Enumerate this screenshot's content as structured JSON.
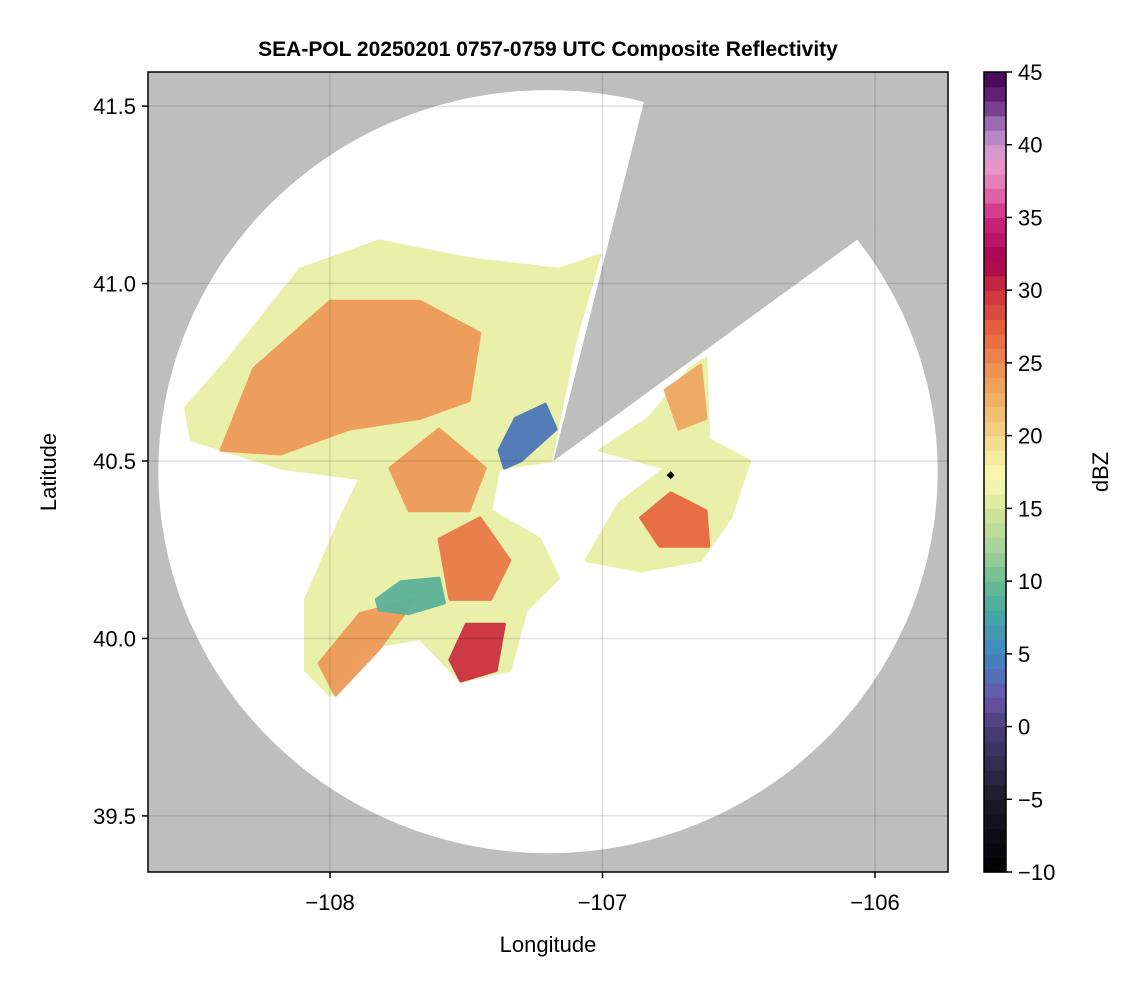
{
  "chart_data": {
    "type": "heatmap",
    "title": "SEA-POL 20250201 0757-0759 UTC Composite Reflectivity",
    "xlabel": "Longitude",
    "ylabel": "Latitude",
    "xlim": [
      -108.668,
      -105.732
    ],
    "ylim": [
      39.342,
      41.596
    ],
    "grid": true,
    "x_ticks": [
      {
        "value": -108,
        "label": "−108"
      },
      {
        "value": -107,
        "label": "−107"
      },
      {
        "value": -106,
        "label": "−106"
      }
    ],
    "y_ticks": [
      {
        "value": 39.5,
        "label": "39.5"
      },
      {
        "value": 40.0,
        "label": "40.0"
      },
      {
        "value": 40.5,
        "label": "40.5"
      },
      {
        "value": 41.0,
        "label": "41.0"
      },
      {
        "value": 41.5,
        "label": "41.5"
      }
    ],
    "colorbar": {
      "label": "dBZ",
      "range": [
        -10,
        45
      ],
      "bin": 1,
      "ticks": [
        {
          "value": -10,
          "label": "−10"
        },
        {
          "value": -5,
          "label": "−5"
        },
        {
          "value": 0,
          "label": "0"
        },
        {
          "value": 5,
          "label": "5"
        },
        {
          "value": 10,
          "label": "10"
        },
        {
          "value": 15,
          "label": "15"
        },
        {
          "value": 20,
          "label": "20"
        },
        {
          "value": 25,
          "label": "25"
        },
        {
          "value": 30,
          "label": "30"
        },
        {
          "value": 35,
          "label": "35"
        },
        {
          "value": 40,
          "label": "40"
        },
        {
          "value": 45,
          "label": "45"
        }
      ],
      "anchors": [
        [
          -10,
          "#000000"
        ],
        [
          -5,
          "#1c1a28"
        ],
        [
          0,
          "#4a3f7a"
        ],
        [
          2,
          "#6a56a8"
        ],
        [
          5,
          "#3f87c0"
        ],
        [
          8,
          "#4aa8a0"
        ],
        [
          10,
          "#6bbb92"
        ],
        [
          12,
          "#a2d09a"
        ],
        [
          15,
          "#d6e698"
        ],
        [
          17,
          "#fafab4"
        ],
        [
          19,
          "#f5e49a"
        ],
        [
          21,
          "#f0c57a"
        ],
        [
          24,
          "#ee9a58"
        ],
        [
          27,
          "#e86840"
        ],
        [
          30,
          "#cc3040"
        ],
        [
          32,
          "#a8004c"
        ],
        [
          35,
          "#cc2a80"
        ],
        [
          37,
          "#e474b0"
        ],
        [
          39,
          "#e8a0d0"
        ],
        [
          41,
          "#a880c0"
        ],
        [
          43,
          "#6a2a80"
        ],
        [
          45,
          "#400050"
        ]
      ]
    },
    "no_data_color": "#bebebe",
    "radar": {
      "lon": -107.2,
      "lat": 40.47,
      "range_lon_deg": 1.43,
      "range_lat_deg": 1.075
    },
    "blocked_sector": [
      [
        -107.18,
        40.5
      ],
      [
        -106.82,
        41.596
      ],
      [
        -105.732,
        41.596
      ],
      [
        -105.732,
        41.31
      ]
    ],
    "marker": {
      "lon": -106.75,
      "lat": 40.46
    },
    "echo_regions": [
      {
        "name": "west-stratiform",
        "dbz": 16,
        "points": [
          [
            -108.53,
            40.65
          ],
          [
            -108.37,
            40.79
          ],
          [
            -108.11,
            41.04
          ],
          [
            -107.82,
            41.12
          ],
          [
            -107.49,
            41.07
          ],
          [
            -107.16,
            41.04
          ],
          [
            -107.01,
            41.08
          ],
          [
            -107.1,
            40.84
          ],
          [
            -107.19,
            40.5
          ],
          [
            -107.38,
            40.48
          ],
          [
            -107.41,
            40.36
          ],
          [
            -107.23,
            40.28
          ],
          [
            -107.16,
            40.17
          ],
          [
            -107.28,
            40.08
          ],
          [
            -107.34,
            39.91
          ],
          [
            -107.52,
            39.88
          ],
          [
            -107.67,
            40.0
          ],
          [
            -107.89,
            39.97
          ],
          [
            -108.0,
            39.84
          ],
          [
            -108.09,
            39.91
          ],
          [
            -108.09,
            40.11
          ],
          [
            -107.96,
            40.34
          ],
          [
            -107.89,
            40.45
          ],
          [
            -108.18,
            40.48
          ],
          [
            -108.51,
            40.56
          ]
        ]
      },
      {
        "name": "east-stratiform",
        "dbz": 16,
        "points": [
          [
            -107.01,
            40.53
          ],
          [
            -106.83,
            40.62
          ],
          [
            -106.68,
            40.76
          ],
          [
            -106.62,
            40.79
          ],
          [
            -106.61,
            40.56
          ],
          [
            -106.46,
            40.5
          ],
          [
            -106.53,
            40.34
          ],
          [
            -106.64,
            40.22
          ],
          [
            -106.86,
            40.19
          ],
          [
            -107.06,
            40.22
          ],
          [
            -106.94,
            40.38
          ],
          [
            -106.77,
            40.48
          ]
        ]
      },
      {
        "name": "northwest-core",
        "dbz": 24,
        "points": [
          [
            -108.4,
            40.53
          ],
          [
            -108.28,
            40.76
          ],
          [
            -108.0,
            40.95
          ],
          [
            -107.67,
            40.95
          ],
          [
            -107.45,
            40.86
          ],
          [
            -107.49,
            40.67
          ],
          [
            -107.67,
            40.62
          ],
          [
            -107.93,
            40.59
          ],
          [
            -108.18,
            40.52
          ]
        ]
      },
      {
        "name": "central-core",
        "dbz": 24,
        "points": [
          [
            -107.78,
            40.48
          ],
          [
            -107.6,
            40.59
          ],
          [
            -107.43,
            40.48
          ],
          [
            -107.49,
            40.36
          ],
          [
            -107.71,
            40.36
          ]
        ]
      },
      {
        "name": "south-core",
        "dbz": 26,
        "points": [
          [
            -107.6,
            40.28
          ],
          [
            -107.45,
            40.34
          ],
          [
            -107.34,
            40.22
          ],
          [
            -107.41,
            40.11
          ],
          [
            -107.56,
            40.11
          ]
        ]
      },
      {
        "name": "southwest-band",
        "dbz": 24,
        "points": [
          [
            -108.04,
            39.93
          ],
          [
            -107.89,
            40.07
          ],
          [
            -107.69,
            40.11
          ],
          [
            -107.82,
            39.97
          ],
          [
            -107.98,
            39.84
          ]
        ]
      },
      {
        "name": "south-intense-core",
        "dbz": 30,
        "points": [
          [
            -107.56,
            39.94
          ],
          [
            -107.5,
            40.04
          ],
          [
            -107.36,
            40.04
          ],
          [
            -107.39,
            39.91
          ],
          [
            -107.52,
            39.88
          ]
        ]
      },
      {
        "name": "east-core",
        "dbz": 27,
        "points": [
          [
            -106.86,
            40.34
          ],
          [
            -106.75,
            40.41
          ],
          [
            -106.62,
            40.36
          ],
          [
            -106.61,
            40.26
          ],
          [
            -106.79,
            40.26
          ]
        ]
      },
      {
        "name": "east-north-core",
        "dbz": 23,
        "points": [
          [
            -106.77,
            40.7
          ],
          [
            -106.64,
            40.77
          ],
          [
            -106.62,
            40.62
          ],
          [
            -106.72,
            40.59
          ]
        ]
      },
      {
        "name": "low-echo-patch",
        "dbz": 9,
        "points": [
          [
            -107.83,
            40.11
          ],
          [
            -107.74,
            40.16
          ],
          [
            -107.6,
            40.17
          ],
          [
            -107.58,
            40.1
          ],
          [
            -107.71,
            40.07
          ],
          [
            -107.82,
            40.08
          ]
        ]
      },
      {
        "name": "near-radar-weak-echo",
        "dbz": 4,
        "points": [
          [
            -107.38,
            40.53
          ],
          [
            -107.32,
            40.62
          ],
          [
            -107.21,
            40.66
          ],
          [
            -107.17,
            40.59
          ],
          [
            -107.3,
            40.5
          ],
          [
            -107.36,
            40.48
          ]
        ]
      }
    ]
  }
}
